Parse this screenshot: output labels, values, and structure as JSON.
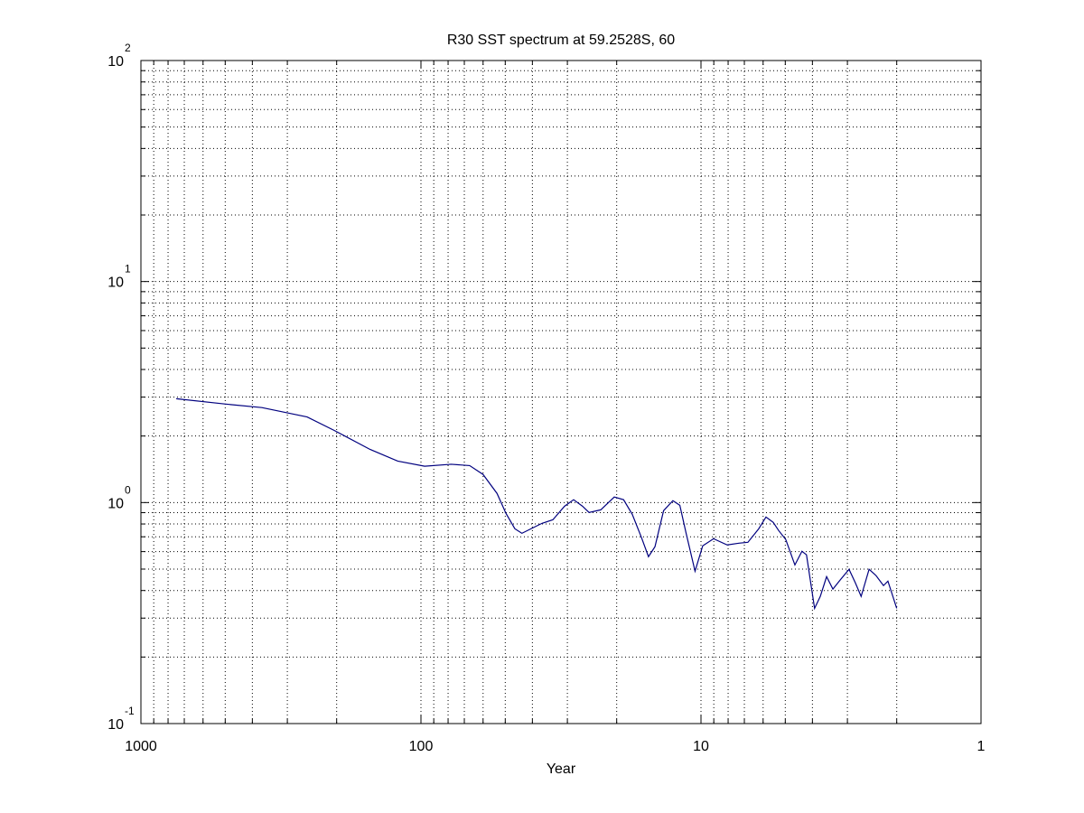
{
  "chart_data": {
    "type": "line",
    "title": "R30 SST spectrum at 59.2528S, 60",
    "xlabel": "Year",
    "xscale": "log",
    "yscale": "log",
    "grid": true,
    "minor_grid": true,
    "xlim": [
      1000,
      1
    ],
    "xticks": [
      1000,
      100,
      10,
      1
    ],
    "ylim": [
      0.1,
      100
    ],
    "yticks": [
      {
        "value": 0.1,
        "label": "10",
        "exponent": "-1"
      },
      {
        "value": 1,
        "label": "10",
        "exponent": "0"
      },
      {
        "value": 10,
        "label": "10",
        "exponent": "1"
      },
      {
        "value": 100,
        "label": "10",
        "exponent": "2"
      }
    ],
    "color": "#00007f",
    "x": [
      748,
      498,
      370,
      255,
      204,
      152,
      121,
      97,
      78,
      67,
      60,
      53.5,
      49.7,
      46.2,
      43.6,
      39.8,
      37.0,
      33.8,
      30.7,
      28.5,
      26.5,
      25.1,
      22.8,
      20.4,
      18.9,
      17.6,
      16.3,
      15.4,
      14.6,
      13.6,
      12.6,
      11.9,
      11.3,
      10.5,
      9.86,
      9.02,
      8.06,
      7.32,
      6.8,
      6.22,
      5.86,
      5.52,
      5.28,
      4.98,
      4.62,
      4.36,
      4.2,
      3.93,
      3.75,
      3.56,
      3.38,
      3.19,
      2.96,
      2.81,
      2.68,
      2.51,
      2.37,
      2.23,
      2.15,
      2.0
    ],
    "values": [
      2.95,
      2.79,
      2.69,
      2.44,
      2.12,
      1.74,
      1.54,
      1.46,
      1.49,
      1.47,
      1.34,
      1.1,
      0.893,
      0.761,
      0.726,
      0.769,
      0.805,
      0.836,
      0.963,
      1.03,
      0.963,
      0.902,
      0.927,
      1.06,
      1.03,
      0.885,
      0.693,
      0.569,
      0.631,
      0.919,
      1.02,
      0.972,
      0.726,
      0.489,
      0.637,
      0.686,
      0.643,
      0.655,
      0.661,
      0.761,
      0.86,
      0.813,
      0.747,
      0.68,
      0.522,
      0.602,
      0.58,
      0.332,
      0.376,
      0.462,
      0.406,
      0.445,
      0.499,
      0.433,
      0.376,
      0.499,
      0.467,
      0.421,
      0.441,
      0.332
    ]
  }
}
